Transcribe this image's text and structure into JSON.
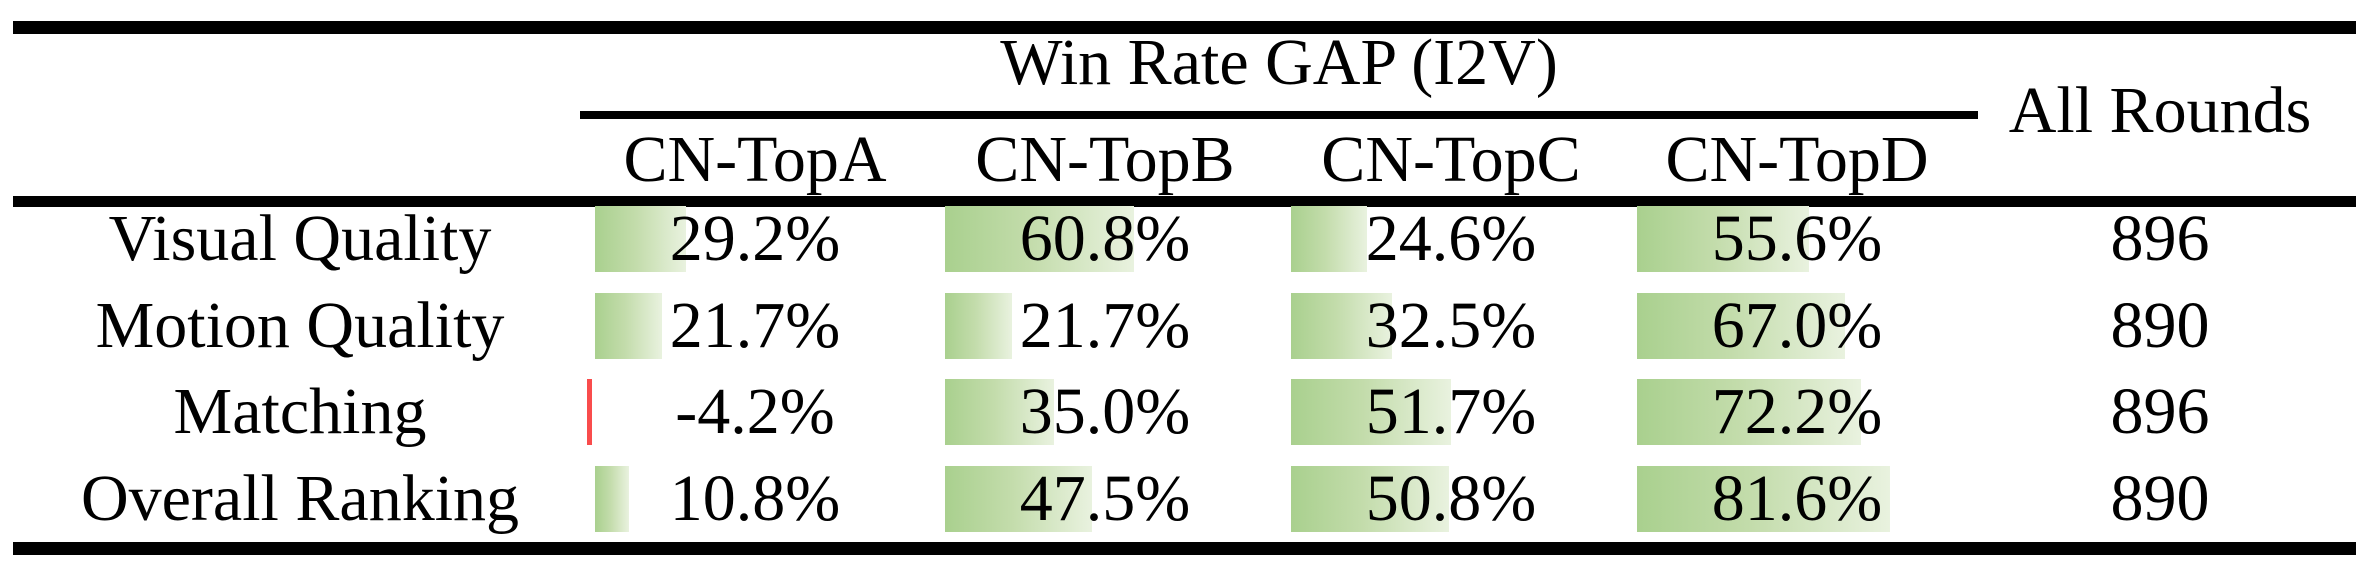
{
  "figure": {
    "group_header": "Win Rate GAP (I2V)",
    "all_rounds_header": "All Rounds",
    "columns": [
      "CN-TopA",
      "CN-TopB",
      "CN-TopC",
      "CN-TopD"
    ],
    "bar_colors": {
      "positive": "#a9d08e",
      "negative": "#f94c4c"
    },
    "rows": [
      {
        "label": "Visual Quality",
        "cells": [
          {
            "text": "29.2%",
            "value": 29.2
          },
          {
            "text": "60.8%",
            "value": 60.8
          },
          {
            "text": "24.6%",
            "value": 24.6
          },
          {
            "text": "55.6%",
            "value": 55.6
          }
        ],
        "all_rounds": "896"
      },
      {
        "label": "Motion Quality",
        "cells": [
          {
            "text": "21.7%",
            "value": 21.7
          },
          {
            "text": "21.7%",
            "value": 21.7
          },
          {
            "text": "32.5%",
            "value": 32.5
          },
          {
            "text": "67.0%",
            "value": 67.0
          }
        ],
        "all_rounds": "890"
      },
      {
        "label": "Matching",
        "cells": [
          {
            "text": "-4.2%",
            "value": -4.2
          },
          {
            "text": "35.0%",
            "value": 35.0
          },
          {
            "text": "51.7%",
            "value": 51.7
          },
          {
            "text": "72.2%",
            "value": 72.2
          }
        ],
        "all_rounds": "896"
      },
      {
        "label": "Overall Ranking",
        "cells": [
          {
            "text": "10.8%",
            "value": 10.8
          },
          {
            "text": "47.5%",
            "value": 47.5
          },
          {
            "text": "50.8%",
            "value": 50.8
          },
          {
            "text": "81.6%",
            "value": 81.6
          }
        ],
        "all_rounds": "890"
      }
    ]
  },
  "chart_data": {
    "type": "table",
    "title": "Win Rate GAP (I2V)",
    "columns": [
      "CN-TopA",
      "CN-TopB",
      "CN-TopC",
      "CN-TopD",
      "All Rounds"
    ],
    "rows": [
      "Visual Quality",
      "Motion Quality",
      "Matching",
      "Overall Ranking"
    ],
    "series": [
      {
        "name": "Visual Quality",
        "win_rate_gap_pct": [
          29.2,
          60.8,
          24.6,
          55.6
        ],
        "all_rounds": 896
      },
      {
        "name": "Motion Quality",
        "win_rate_gap_pct": [
          21.7,
          21.7,
          32.5,
          67.0
        ],
        "all_rounds": 890
      },
      {
        "name": "Matching",
        "win_rate_gap_pct": [
          -4.2,
          35.0,
          51.7,
          72.2
        ],
        "all_rounds": 896
      },
      {
        "name": "Overall Ranking",
        "win_rate_gap_pct": [
          10.8,
          47.5,
          50.8,
          81.6
        ],
        "all_rounds": 890
      }
    ],
    "cell_visual": "in-cell horizontal data bars, green gradient for positive, thin red for negative"
  }
}
